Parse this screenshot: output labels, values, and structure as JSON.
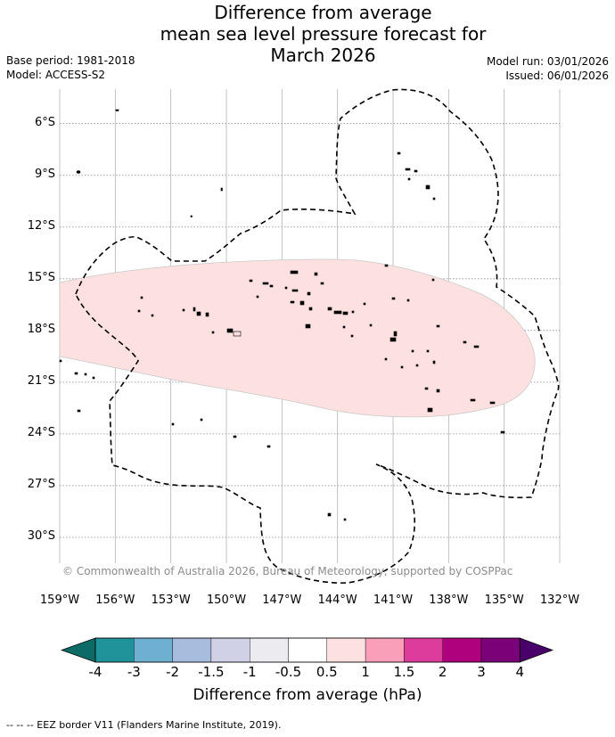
{
  "title": {
    "line1": "Difference from average",
    "line2": "mean sea level pressure forecast for",
    "line3": "March 2026"
  },
  "meta": {
    "base_period": "Base period: 1981-2018",
    "model": "Model: ACCESS-S2",
    "model_run": "Model run: 03/01/2026",
    "issued": "Issued: 06/01/2026"
  },
  "map": {
    "lat_labels": [
      "6°S",
      "9°S",
      "12°S",
      "15°S",
      "18°S",
      "21°S",
      "24°S",
      "27°S",
      "30°S"
    ],
    "lon_labels": [
      "159°W",
      "156°W",
      "153°W",
      "150°W",
      "147°W",
      "144°W",
      "141°W",
      "138°W",
      "135°W",
      "132°W"
    ],
    "lon_range": [
      -159,
      -132
    ],
    "lat_range": [
      -31.5,
      -4
    ],
    "copyright": "© Commonwealth of Australia 2026, Bureau of Meteorology, supported by COSPPac",
    "anomaly_color": "#fde0e0",
    "anomaly_category": "0.5 to 1"
  },
  "colorbar": {
    "colors": [
      "#0d6b66",
      "#1f9399",
      "#6fafd2",
      "#a8bcdd",
      "#d0d1e6",
      "#ebebf0",
      "#ffffff",
      "#fde0e0",
      "#f99fba",
      "#de3c9c",
      "#ae017e",
      "#7a0177",
      "#49006a"
    ],
    "ticks": [
      "-4",
      "-3",
      "-2",
      "-1.5",
      "-1",
      "-0.5",
      "0.5",
      "1",
      "1.5",
      "2",
      "3",
      "4"
    ],
    "label": "Difference from average (hPa)"
  },
  "footnote": "--  --  -- EEZ border V11 (Flanders Marine Institute, 2019)."
}
